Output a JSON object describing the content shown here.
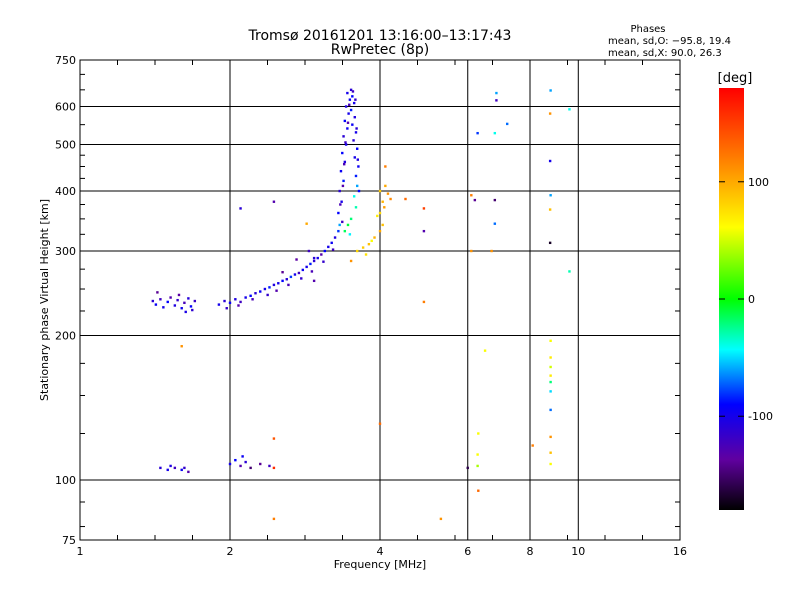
{
  "chart_data": {
    "type": "scatter",
    "title": "Tromsø 20161201 13:16:00–13:17:43",
    "subtitle": "RwPretec (8p)",
    "xlabel": "Frequency [MHz]",
    "ylabel": "Stationary phase Virtual Height [km]",
    "x_scale": "log",
    "y_scale": "log",
    "xlim": [
      1,
      16
    ],
    "ylim": [
      75,
      750
    ],
    "x_ticks": [
      1,
      2,
      4,
      6,
      8,
      10,
      16
    ],
    "y_ticks": [
      75,
      100,
      200,
      300,
      400,
      500,
      600,
      750
    ],
    "grid": true,
    "phases": {
      "heading": "Phases",
      "line_o": "mean, sd,O: −95.8, 19.4",
      "line_x": "mean, sd,X:  90.0, 26.3"
    },
    "colorbar": {
      "label": "[deg]",
      "ticks": [
        100,
        0,
        -100
      ],
      "range": [
        -180,
        180
      ],
      "colors_top_to_bottom": [
        "#ff0000",
        "#ff8000",
        "#ffff00",
        "#00ff00",
        "#00ffff",
        "#0000ff",
        "#6000a0",
        "#000000"
      ]
    },
    "series": [
      {
        "description_key": "F-trace low",
        "points": [
          [
            1.4,
            236,
            -110
          ],
          [
            1.42,
            232,
            -95
          ],
          [
            1.45,
            238,
            -120
          ],
          [
            1.47,
            229,
            -100
          ],
          [
            1.5,
            235,
            -90
          ],
          [
            1.52,
            240,
            -130
          ],
          [
            1.55,
            231,
            -105
          ],
          [
            1.57,
            237,
            -115
          ],
          [
            1.6,
            228,
            -98
          ],
          [
            1.62,
            234,
            -125
          ],
          [
            1.65,
            239,
            -108
          ],
          [
            1.67,
            230,
            -92
          ],
          [
            1.7,
            236,
            -118
          ],
          [
            1.43,
            246,
            -140
          ],
          [
            1.58,
            243,
            -135
          ],
          [
            1.68,
            226,
            -112
          ],
          [
            1.63,
            224,
            -102
          ]
        ]
      },
      {
        "description_key": "F-trace rising",
        "points": [
          [
            1.9,
            232,
            -100
          ],
          [
            1.95,
            236,
            -110
          ],
          [
            2.0,
            234,
            -95
          ],
          [
            2.05,
            238,
            -105
          ],
          [
            2.1,
            235,
            -120
          ],
          [
            2.15,
            240,
            -100
          ],
          [
            2.2,
            242,
            -90
          ],
          [
            2.25,
            245,
            -110
          ],
          [
            2.3,
            247,
            -95
          ],
          [
            2.35,
            250,
            -100
          ],
          [
            2.4,
            252,
            -85
          ],
          [
            2.45,
            255,
            -105
          ],
          [
            2.5,
            257,
            -100
          ],
          [
            2.55,
            260,
            -90
          ],
          [
            2.6,
            262,
            -110
          ],
          [
            2.65,
            265,
            -80
          ],
          [
            2.7,
            268,
            -100
          ],
          [
            2.75,
            270,
            -120
          ],
          [
            2.8,
            274,
            -95
          ],
          [
            2.85,
            278,
            -100
          ],
          [
            2.9,
            282,
            -85
          ],
          [
            2.95,
            286,
            -110
          ],
          [
            3.0,
            290,
            -100
          ],
          [
            3.05,
            295,
            -130
          ],
          [
            3.1,
            300,
            -90
          ],
          [
            3.15,
            306,
            -100
          ],
          [
            3.2,
            312,
            -95
          ],
          [
            3.25,
            320,
            -105
          ],
          [
            3.3,
            330,
            -80
          ],
          [
            3.32,
            340,
            -60
          ],
          [
            1.97,
            228,
            -115
          ],
          [
            2.08,
            231,
            -130
          ],
          [
            2.22,
            238,
            -125
          ],
          [
            2.38,
            243,
            -115
          ],
          [
            2.48,
            248,
            -130
          ],
          [
            2.62,
            255,
            -125
          ],
          [
            2.78,
            263,
            -115
          ],
          [
            2.92,
            272,
            -125
          ],
          [
            3.08,
            285,
            -115
          ],
          [
            3.22,
            302,
            -120
          ],
          [
            2.55,
            271,
            -140
          ],
          [
            2.72,
            288,
            -135
          ],
          [
            2.88,
            300,
            -120
          ],
          [
            2.95,
            260,
            -130
          ]
        ]
      },
      {
        "description_key": "F-cusp",
        "points": [
          [
            3.3,
            360,
            -90
          ],
          [
            3.35,
            380,
            -100
          ],
          [
            3.32,
            400,
            -110
          ],
          [
            3.38,
            420,
            -85
          ],
          [
            3.34,
            440,
            -95
          ],
          [
            3.4,
            460,
            -105
          ],
          [
            3.36,
            480,
            -90
          ],
          [
            3.42,
            500,
            -100
          ],
          [
            3.38,
            520,
            -110
          ],
          [
            3.44,
            540,
            -95
          ],
          [
            3.4,
            560,
            -90
          ],
          [
            3.46,
            580,
            -100
          ],
          [
            3.42,
            600,
            -105
          ],
          [
            3.48,
            620,
            -95
          ],
          [
            3.44,
            640,
            -100
          ],
          [
            3.5,
            650,
            -110
          ],
          [
            3.52,
            630,
            -90
          ],
          [
            3.55,
            610,
            -100
          ],
          [
            3.5,
            590,
            -85
          ],
          [
            3.56,
            570,
            -105
          ],
          [
            3.52,
            550,
            -95
          ],
          [
            3.58,
            530,
            -100
          ],
          [
            3.54,
            510,
            -110
          ],
          [
            3.6,
            490,
            -90
          ],
          [
            3.56,
            470,
            -100
          ],
          [
            3.62,
            450,
            -95
          ],
          [
            3.58,
            430,
            -85
          ],
          [
            3.6,
            410,
            -60
          ],
          [
            3.55,
            390,
            -40
          ],
          [
            3.58,
            370,
            -30
          ],
          [
            3.5,
            350,
            -20
          ],
          [
            3.45,
            340,
            -10
          ],
          [
            3.4,
            330,
            -15
          ],
          [
            3.48,
            325,
            -45
          ],
          [
            3.36,
            345,
            -120
          ],
          [
            3.33,
            375,
            -125
          ],
          [
            3.37,
            410,
            -130
          ],
          [
            3.39,
            455,
            -125
          ],
          [
            3.41,
            505,
            -120
          ],
          [
            3.45,
            555,
            -130
          ],
          [
            3.47,
            605,
            -125
          ],
          [
            3.53,
            645,
            -120
          ],
          [
            3.57,
            620,
            -115
          ],
          [
            3.59,
            540,
            -110
          ],
          [
            3.61,
            465,
            -105
          ],
          [
            3.63,
            400,
            -90
          ]
        ]
      },
      {
        "description_key": "X-trace",
        "points": [
          [
            3.6,
            300,
            80
          ],
          [
            3.7,
            305,
            85
          ],
          [
            3.8,
            310,
            90
          ],
          [
            3.9,
            320,
            95
          ],
          [
            4.0,
            330,
            100
          ],
          [
            4.05,
            340,
            90
          ],
          [
            4.0,
            360,
            80
          ],
          [
            4.05,
            380,
            95
          ],
          [
            4.0,
            400,
            85
          ],
          [
            4.1,
            410,
            100
          ],
          [
            4.15,
            395,
            110
          ],
          [
            4.1,
            450,
            120
          ],
          [
            3.75,
            295,
            75
          ],
          [
            3.95,
            355,
            70
          ],
          [
            4.08,
            370,
            105
          ],
          [
            3.85,
            315,
            60
          ],
          [
            4.2,
            385,
            115
          ]
        ]
      },
      {
        "description_key": "E-trace",
        "points": [
          [
            1.45,
            106,
            -110
          ],
          [
            1.5,
            105,
            -100
          ],
          [
            1.55,
            106,
            -120
          ],
          [
            1.6,
            105,
            -95
          ],
          [
            1.65,
            104,
            -130
          ],
          [
            1.52,
            107,
            -105
          ],
          [
            1.62,
            106,
            -115
          ],
          [
            2.0,
            108,
            -100
          ],
          [
            2.05,
            110,
            -90
          ],
          [
            2.1,
            107,
            -130
          ],
          [
            2.15,
            109,
            -110
          ],
          [
            2.2,
            106,
            -150
          ],
          [
            2.3,
            108,
            -140
          ],
          [
            2.4,
            107,
            -120
          ],
          [
            2.45,
            106,
            160
          ],
          [
            2.12,
            112,
            -95
          ]
        ]
      },
      {
        "description_key": "scattered",
        "points": [
          [
            6.85,
            640,
            -60
          ],
          [
            6.85,
            618,
            -120
          ],
          [
            6.28,
            528,
            -80
          ],
          [
            6.8,
            528,
            -40
          ],
          [
            7.2,
            552,
            -70
          ],
          [
            8.8,
            648,
            -60
          ],
          [
            8.78,
            580,
            110
          ],
          [
            9.6,
            592,
            -40
          ],
          [
            8.78,
            462,
            -100
          ],
          [
            8.8,
            392,
            -60
          ],
          [
            8.78,
            366,
            90
          ],
          [
            8.78,
            312,
            -170
          ],
          [
            6.1,
            392,
            120
          ],
          [
            6.2,
            383,
            -140
          ],
          [
            6.8,
            383,
            -150
          ],
          [
            6.8,
            342,
            -70
          ],
          [
            6.7,
            300,
            110
          ],
          [
            6.1,
            300,
            110
          ],
          [
            9.6,
            272,
            -30
          ],
          [
            4.9,
            368,
            150
          ],
          [
            4.9,
            330,
            -130
          ],
          [
            4.9,
            235,
            120
          ],
          [
            6.5,
            186,
            60
          ],
          [
            8.8,
            195,
            60
          ],
          [
            8.8,
            180,
            70
          ],
          [
            8.8,
            172,
            50
          ],
          [
            8.8,
            165,
            70
          ],
          [
            8.8,
            160,
            -20
          ],
          [
            8.8,
            153,
            -50
          ],
          [
            8.8,
            140,
            -70
          ],
          [
            8.8,
            123,
            110
          ],
          [
            8.8,
            114,
            90
          ],
          [
            8.8,
            108,
            60
          ],
          [
            8.1,
            118,
            120
          ],
          [
            6.3,
            125,
            60
          ],
          [
            6.28,
            113,
            60
          ],
          [
            6.28,
            107,
            40
          ],
          [
            6.3,
            95,
            130
          ],
          [
            5.3,
            83,
            110
          ],
          [
            4.0,
            131,
            130
          ],
          [
            2.45,
            122,
            140
          ],
          [
            2.45,
            83,
            120
          ],
          [
            1.6,
            190,
            110
          ],
          [
            2.1,
            368,
            -110
          ],
          [
            2.45,
            380,
            -130
          ],
          [
            2.85,
            342,
            100
          ],
          [
            2.95,
            290,
            -110
          ],
          [
            6.0,
            106,
            -160
          ],
          [
            4.5,
            385,
            130
          ],
          [
            3.5,
            286,
            110
          ]
        ]
      }
    ]
  }
}
